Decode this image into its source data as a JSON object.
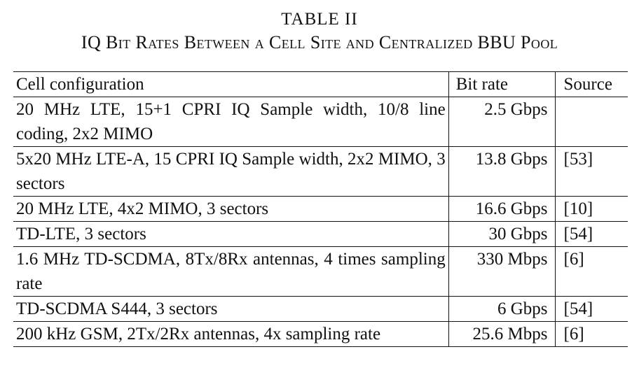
{
  "table": {
    "label": "TABLE II",
    "title": "IQ Bit Rates Between a Cell Site and Centralized BBU Pool",
    "headers": [
      "Cell configuration",
      "Bit rate",
      "Source"
    ],
    "rows": [
      {
        "config": "20 MHz LTE, 15+1 CPRI IQ Sample width, 10/8 line coding, 2x2 MIMO",
        "rate": "2.5 Gbps",
        "source": ""
      },
      {
        "config": "5x20 MHz LTE-A, 15 CPRI IQ Sample width, 2x2 MIMO, 3 sectors",
        "rate": "13.8 Gbps",
        "source": "[53]"
      },
      {
        "config": "20 MHz LTE, 4x2 MIMO, 3 sectors",
        "rate": "16.6 Gbps",
        "source": "[10]"
      },
      {
        "config": "TD-LTE, 3 sectors",
        "rate": "30 Gbps",
        "source": "[54]"
      },
      {
        "config": "1.6 MHz TD-SCDMA, 8Tx/8Rx antennas, 4 times sampling rate",
        "rate": "330 Mbps",
        "source": "[6]"
      },
      {
        "config": "TD-SCDMA S444, 3 sectors",
        "rate": "6 Gbps",
        "source": "[54]"
      },
      {
        "config": "200 kHz GSM, 2Tx/2Rx antennas, 4x sampling rate",
        "rate": "25.6 Mbps",
        "source": "[6]"
      }
    ]
  }
}
